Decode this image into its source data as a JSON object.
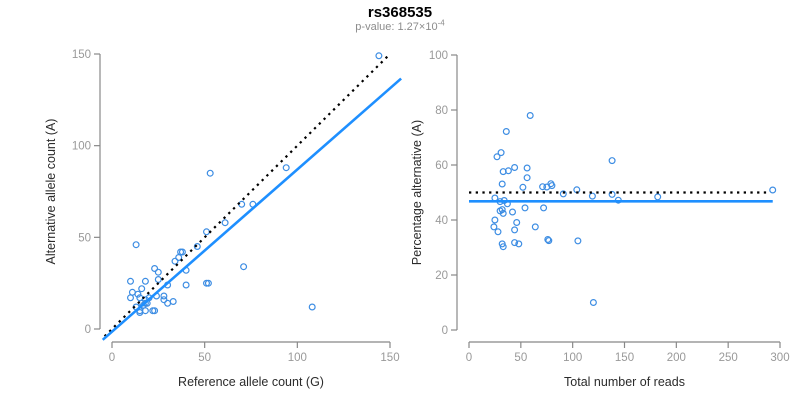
{
  "header": {
    "title": "rs368535",
    "subtitle_prefix": "p-value: 1.27×10",
    "subtitle_exponent": "-4"
  },
  "colors": {
    "point": "#3d8de3",
    "fit_line": "#1e8fff",
    "reference_line": "#000000",
    "axis": "#888888",
    "tick_label": "#999999",
    "axis_title": "#2b2b2b"
  },
  "chart_data": [
    {
      "id": "allele-count-scatter",
      "type": "scatter",
      "xlabel": "Reference allele count (G)",
      "ylabel": "Alternative allele count (A)",
      "xlim": [
        0,
        150
      ],
      "ylim": [
        0,
        150
      ],
      "xticks": [
        0,
        50,
        100,
        150
      ],
      "yticks": [
        0,
        50,
        100,
        150
      ],
      "grid": false,
      "points": [
        [
          144,
          149
        ],
        [
          108,
          12
        ],
        [
          94,
          88
        ],
        [
          53,
          85
        ],
        [
          70,
          68
        ],
        [
          76,
          68
        ],
        [
          71,
          34
        ],
        [
          61,
          58
        ],
        [
          51,
          53
        ],
        [
          51,
          25
        ],
        [
          52,
          25
        ],
        [
          37,
          42
        ],
        [
          40,
          32
        ],
        [
          40,
          24
        ],
        [
          23,
          33
        ],
        [
          13,
          46
        ],
        [
          10,
          26
        ],
        [
          11,
          20
        ],
        [
          10,
          17
        ],
        [
          14,
          19
        ],
        [
          18,
          26
        ],
        [
          25,
          31
        ],
        [
          16,
          22
        ],
        [
          15,
          17
        ],
        [
          34,
          37
        ],
        [
          36,
          39
        ],
        [
          38,
          42
        ],
        [
          25,
          27
        ],
        [
          46,
          45
        ],
        [
          13,
          12
        ],
        [
          16,
          14
        ],
        [
          18,
          14
        ],
        [
          18,
          16
        ],
        [
          20,
          17
        ],
        [
          19,
          14
        ],
        [
          17,
          13
        ],
        [
          15,
          10
        ],
        [
          24,
          18
        ],
        [
          28,
          16
        ],
        [
          28,
          18
        ],
        [
          30,
          14
        ],
        [
          33,
          15
        ],
        [
          15,
          9
        ],
        [
          18,
          10
        ],
        [
          22,
          10
        ],
        [
          23,
          10
        ],
        [
          30,
          24
        ]
      ],
      "reference_line": {
        "name": "identity-line",
        "style": "dotted",
        "from": [
          -4,
          -4
        ],
        "to": [
          149,
          149
        ]
      },
      "fit_line": {
        "name": "regression-line",
        "style": "solid",
        "slope": 0.885,
        "intercept": -1.5,
        "from": [
          -5,
          -5.9
        ],
        "to": [
          156,
          136.6
        ]
      }
    },
    {
      "id": "percentage-reads-scatter",
      "type": "scatter",
      "xlabel": "Total number of reads",
      "ylabel": "Percentage alternative (A)",
      "xlim": [
        0,
        300
      ],
      "ylim": [
        0,
        100
      ],
      "xticks": [
        0,
        50,
        100,
        150,
        200,
        250,
        300
      ],
      "yticks": [
        0,
        20,
        40,
        60,
        80,
        100
      ],
      "grid": false,
      "points": [
        [
          293,
          50.9
        ],
        [
          120,
          10.0
        ],
        [
          182,
          48.4
        ],
        [
          138,
          61.6
        ],
        [
          138,
          49.3
        ],
        [
          144,
          47.2
        ],
        [
          105,
          32.4
        ],
        [
          119,
          48.7
        ],
        [
          104,
          51.0
        ],
        [
          76,
          32.9
        ],
        [
          77,
          32.5
        ],
        [
          79,
          53.2
        ],
        [
          72,
          44.4
        ],
        [
          64,
          37.5
        ],
        [
          56,
          58.9
        ],
        [
          59,
          78.0
        ],
        [
          36,
          72.2
        ],
        [
          31,
          64.5
        ],
        [
          27,
          63.0
        ],
        [
          33,
          57.6
        ],
        [
          44,
          59.1
        ],
        [
          56,
          55.4
        ],
        [
          38,
          57.9
        ],
        [
          32,
          53.1
        ],
        [
          71,
          52.1
        ],
        [
          75,
          52.0
        ],
        [
          80,
          52.5
        ],
        [
          52,
          51.9
        ],
        [
          91,
          49.5
        ],
        [
          25,
          48.0
        ],
        [
          30,
          46.7
        ],
        [
          32,
          43.8
        ],
        [
          34,
          47.1
        ],
        [
          37,
          45.9
        ],
        [
          33,
          42.4
        ],
        [
          30,
          43.3
        ],
        [
          25,
          40.0
        ],
        [
          42,
          42.9
        ],
        [
          44,
          36.4
        ],
        [
          46,
          39.1
        ],
        [
          44,
          31.8
        ],
        [
          48,
          31.3
        ],
        [
          24,
          37.5
        ],
        [
          28,
          35.7
        ],
        [
          32,
          31.3
        ],
        [
          33,
          30.3
        ],
        [
          54,
          44.4
        ]
      ],
      "reference_line": {
        "name": "fifty-percent-line",
        "style": "dotted",
        "from": [
          0,
          50
        ],
        "to": [
          290,
          50
        ]
      },
      "fit_line": {
        "name": "mean-percentage-line",
        "style": "solid",
        "y": 46.8,
        "from": [
          0,
          46.8
        ],
        "to": [
          293,
          46.8
        ]
      }
    }
  ]
}
